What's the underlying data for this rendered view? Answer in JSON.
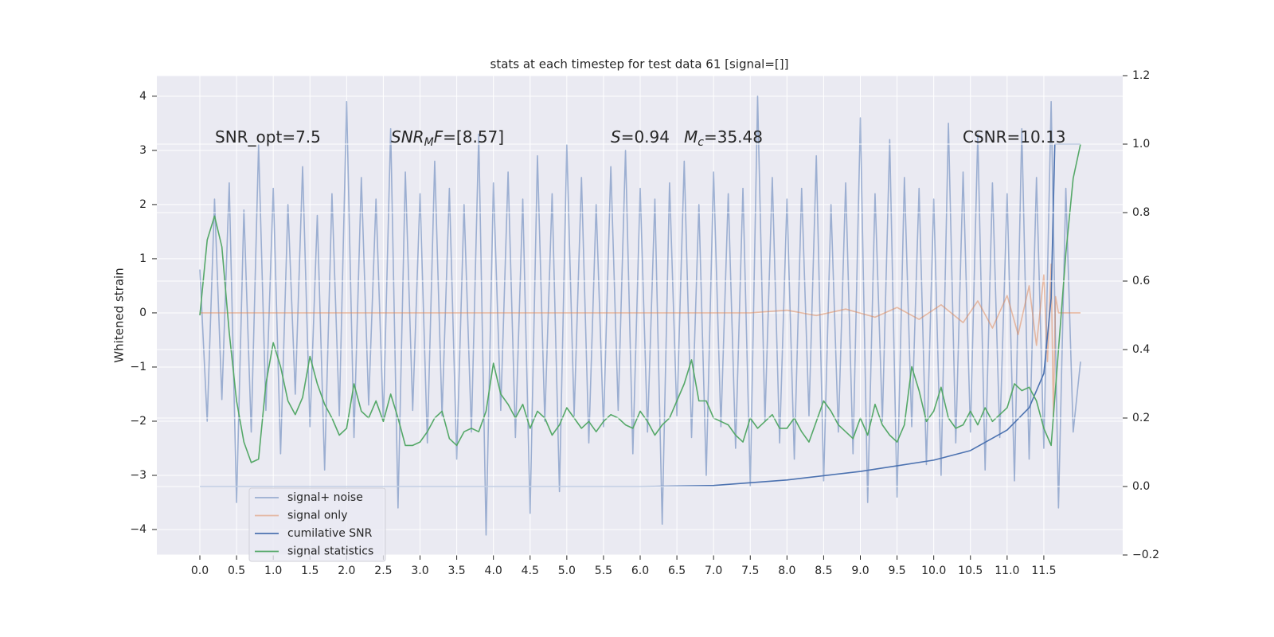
{
  "chart_data": {
    "type": "line",
    "title": "stats at each timestep for test data 61 [signal=[]]",
    "ylabel": "Whitened strain",
    "xlim": [
      -0.586,
      12.575
    ],
    "ylim": [
      -4.47,
      4.38
    ],
    "y2lim": [
      -0.2,
      1.2
    ],
    "xticks": [
      {
        "value": 0,
        "label": "0.0"
      },
      {
        "value": 0.5,
        "label": "0.5"
      },
      {
        "value": 1,
        "label": "1.0"
      },
      {
        "value": 1.5,
        "label": "1.5"
      },
      {
        "value": 2,
        "label": "2.0"
      },
      {
        "value": 2.5,
        "label": "2.5"
      },
      {
        "value": 3,
        "label": "3.0"
      },
      {
        "value": 3.5,
        "label": "3.5"
      },
      {
        "value": 4,
        "label": "4.0"
      },
      {
        "value": 4.5,
        "label": "4.5"
      },
      {
        "value": 5,
        "label": "5.0"
      },
      {
        "value": 5.5,
        "label": "5.5"
      },
      {
        "value": 6,
        "label": "6.0"
      },
      {
        "value": 6.5,
        "label": "6.5"
      },
      {
        "value": 7,
        "label": "7.0"
      },
      {
        "value": 7.5,
        "label": "7.5"
      },
      {
        "value": 8,
        "label": "8.0"
      },
      {
        "value": 8.5,
        "label": "8.5"
      },
      {
        "value": 9,
        "label": "9.0"
      },
      {
        "value": 9.5,
        "label": "9.5"
      },
      {
        "value": 10,
        "label": "10.0"
      },
      {
        "value": 10.5,
        "label": "10.5"
      },
      {
        "value": 11,
        "label": "11.0"
      },
      {
        "value": 11.5,
        "label": "11.5"
      }
    ],
    "yticks": [
      {
        "value": -4,
        "label": "−4"
      },
      {
        "value": -3,
        "label": "−3"
      },
      {
        "value": -2,
        "label": "−2"
      },
      {
        "value": -1,
        "label": "−1"
      },
      0,
      1,
      2,
      3,
      4
    ],
    "y2ticks": [
      {
        "value": -0.2,
        "label": "−0.2"
      },
      {
        "value": 0,
        "label": "0.0"
      },
      0.2,
      0.4,
      0.6,
      0.8,
      {
        "value": 1,
        "label": "1.0"
      },
      1.2
    ],
    "grid": true,
    "legend": "lower left",
    "annotations": [
      [
        {
          "text": "SNR_opt=7.5"
        }
      ],
      [
        {
          "text": "SNR",
          "italic": true
        },
        {
          "text": "M",
          "italic": true,
          "sub": true
        },
        {
          "text": "F",
          "italic": true
        },
        {
          "text": "=[8.57]"
        }
      ],
      [
        {
          "text": "S",
          "italic": true
        },
        {
          "text": "=0.94"
        }
      ],
      [
        {
          "text": "M",
          "italic": true
        },
        {
          "text": "c",
          "italic": true,
          "sub": true
        },
        {
          "text": "=35.48"
        }
      ],
      [
        {
          "text": "CSNR=10.13"
        }
      ]
    ],
    "x": [
      0.0,
      0.1,
      0.2,
      0.3,
      0.4,
      0.5,
      0.6,
      0.7,
      0.8,
      0.9,
      1.0,
      1.1,
      1.2,
      1.3,
      1.4,
      1.5,
      1.6,
      1.7,
      1.8,
      1.9,
      2.0,
      2.1,
      2.2,
      2.3,
      2.4,
      2.5,
      2.6,
      2.7,
      2.8,
      2.9,
      3.0,
      3.1,
      3.2,
      3.3,
      3.4,
      3.5,
      3.6,
      3.7,
      3.8,
      3.9,
      4.0,
      4.1,
      4.2,
      4.3,
      4.4,
      4.5,
      4.6,
      4.7,
      4.8,
      4.9,
      5.0,
      5.1,
      5.2,
      5.3,
      5.4,
      5.5,
      5.6,
      5.7,
      5.8,
      5.9,
      6.0,
      6.1,
      6.2,
      6.3,
      6.4,
      6.5,
      6.6,
      6.7,
      6.8,
      6.9,
      7.0,
      7.1,
      7.2,
      7.3,
      7.4,
      7.5,
      7.6,
      7.7,
      7.8,
      7.9,
      8.0,
      8.1,
      8.2,
      8.3,
      8.4,
      8.5,
      8.6,
      8.7,
      8.8,
      8.9,
      9.0,
      9.1,
      9.2,
      9.3,
      9.4,
      9.5,
      9.6,
      9.7,
      9.8,
      9.9,
      10.0,
      10.1,
      10.2,
      10.3,
      10.4,
      10.5,
      10.6,
      10.7,
      10.8,
      10.9,
      11.0,
      11.1,
      11.2,
      11.3,
      11.4,
      11.5,
      11.6,
      11.7,
      11.8,
      11.9,
      12.0
    ],
    "series": [
      {
        "name": "signal+ noise",
        "color": "#4c72b0",
        "opacity": 0.5,
        "values": [
          0.8,
          -2.0,
          2.1,
          -1.6,
          2.4,
          -3.5,
          1.9,
          -2.2,
          3.1,
          -1.8,
          2.3,
          -2.6,
          2.0,
          -1.5,
          2.7,
          -2.1,
          1.8,
          -2.9,
          2.2,
          -1.9,
          3.9,
          -2.3,
          2.5,
          -1.7,
          2.1,
          -2.0,
          3.4,
          -3.6,
          2.6,
          -1.8,
          2.2,
          -2.4,
          2.8,
          -1.9,
          2.3,
          -2.7,
          2.0,
          -2.2,
          3.3,
          -4.1,
          2.4,
          -1.8,
          2.6,
          -2.3,
          2.1,
          -3.7,
          2.9,
          -2.0,
          2.2,
          -3.3,
          3.1,
          -1.9,
          2.5,
          -2.4,
          2.0,
          -2.1,
          2.7,
          -1.8,
          3.0,
          -2.6,
          2.3,
          -2.2,
          2.1,
          -3.9,
          2.4,
          -1.9,
          2.8,
          -2.3,
          2.0,
          -3.0,
          2.6,
          -2.1,
          2.2,
          -2.5,
          2.3,
          -3.2,
          4.0,
          -2.0,
          2.5,
          -2.4,
          2.1,
          -2.7,
          2.3,
          -1.9,
          2.9,
          -3.1,
          2.0,
          -2.2,
          2.4,
          -2.6,
          3.6,
          -3.5,
          2.2,
          -2.0,
          3.2,
          -3.4,
          2.5,
          -2.1,
          2.3,
          -2.8,
          2.1,
          -3.0,
          3.5,
          -2.4,
          2.6,
          -2.2,
          3.3,
          -2.9,
          2.4,
          -2.3,
          2.2,
          -3.1,
          3.4,
          -2.7,
          2.5,
          -2.5,
          3.9,
          -3.6,
          2.3,
          -2.2,
          -0.9
        ]
      },
      {
        "name": "signal only",
        "color": "#dd8452",
        "opacity": 0.5,
        "x": [
          0,
          7.5,
          8.0,
          8.4,
          8.8,
          9.2,
          9.5,
          9.8,
          10.1,
          10.4,
          10.6,
          10.8,
          11.0,
          11.15,
          11.3,
          11.4,
          11.5,
          11.55,
          11.6,
          11.63,
          11.66,
          11.7,
          12.0
        ],
        "values": [
          0,
          0,
          0.05,
          -0.05,
          0.07,
          -0.08,
          0.1,
          -0.12,
          0.15,
          -0.18,
          0.22,
          -0.28,
          0.32,
          -0.4,
          0.5,
          -0.6,
          0.7,
          -0.9,
          0.9,
          -1.9,
          0.3,
          0,
          0
        ]
      },
      {
        "name": "cumilative SNR",
        "color": "#4c72b0",
        "axis": "y2",
        "x": [
          0,
          6,
          7,
          8,
          9,
          10,
          10.5,
          11,
          11.3,
          11.5,
          11.6,
          11.65,
          12.0
        ],
        "values": [
          0,
          0,
          0.003,
          0.019,
          0.044,
          0.077,
          0.105,
          0.165,
          0.23,
          0.33,
          0.55,
          1.0,
          1.0
        ]
      },
      {
        "name": "signal statistics",
        "color": "#55a868",
        "axis": "y2",
        "values": [
          0.5,
          0.72,
          0.79,
          0.7,
          0.45,
          0.25,
          0.13,
          0.07,
          0.08,
          0.3,
          0.42,
          0.35,
          0.25,
          0.21,
          0.26,
          0.38,
          0.3,
          0.24,
          0.2,
          0.15,
          0.17,
          0.3,
          0.22,
          0.2,
          0.25,
          0.19,
          0.27,
          0.2,
          0.12,
          0.12,
          0.13,
          0.16,
          0.2,
          0.22,
          0.14,
          0.12,
          0.16,
          0.17,
          0.16,
          0.22,
          0.36,
          0.27,
          0.24,
          0.2,
          0.24,
          0.17,
          0.22,
          0.2,
          0.15,
          0.18,
          0.23,
          0.2,
          0.17,
          0.19,
          0.16,
          0.19,
          0.21,
          0.2,
          0.18,
          0.17,
          0.22,
          0.19,
          0.15,
          0.18,
          0.2,
          0.25,
          0.3,
          0.37,
          0.25,
          0.25,
          0.2,
          0.19,
          0.18,
          0.15,
          0.13,
          0.2,
          0.17,
          0.19,
          0.21,
          0.17,
          0.17,
          0.2,
          0.16,
          0.13,
          0.19,
          0.25,
          0.22,
          0.18,
          0.16,
          0.14,
          0.2,
          0.15,
          0.24,
          0.18,
          0.15,
          0.13,
          0.18,
          0.35,
          0.28,
          0.19,
          0.22,
          0.29,
          0.2,
          0.17,
          0.18,
          0.22,
          0.18,
          0.23,
          0.19,
          0.21,
          0.23,
          0.3,
          0.28,
          0.29,
          0.25,
          0.17,
          0.12,
          0.4,
          0.68,
          0.9,
          1.0
        ]
      }
    ]
  }
}
